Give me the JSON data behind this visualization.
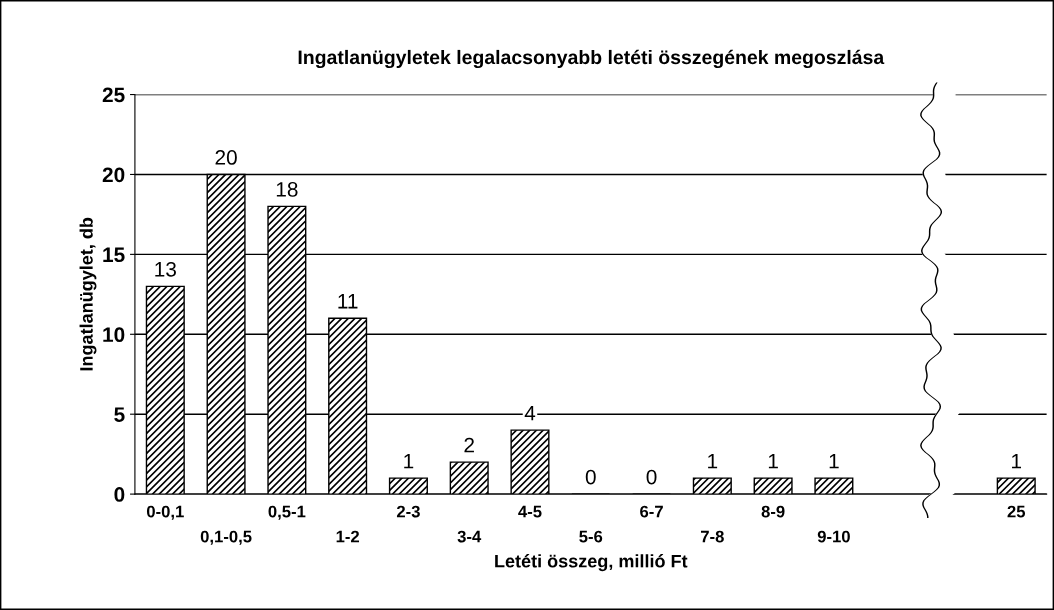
{
  "chart_data": {
    "type": "bar",
    "title": "Ingatlanügyletek legalacsonyabb letéti összegének megoszlása",
    "xlabel": "Letéti összeg, millió Ft",
    "ylabel": "Ingatlanügylet, db",
    "categories": [
      "0-0,1",
      "0,1-0,5",
      "0,5-1",
      "1-2",
      "2-3",
      "3-4",
      "4-5",
      "5-6",
      "6-7",
      "7-8",
      "8-9",
      "9-10",
      null,
      null,
      "25"
    ],
    "values": [
      13,
      20,
      18,
      11,
      1,
      2,
      4,
      0,
      0,
      1,
      1,
      1,
      null,
      null,
      1
    ],
    "color": "#000000",
    "ylim": [
      0,
      25
    ],
    "yticks": [
      0,
      5,
      10,
      15,
      20,
      25
    ],
    "grid": "y",
    "data_labels": true,
    "legend": false
  }
}
